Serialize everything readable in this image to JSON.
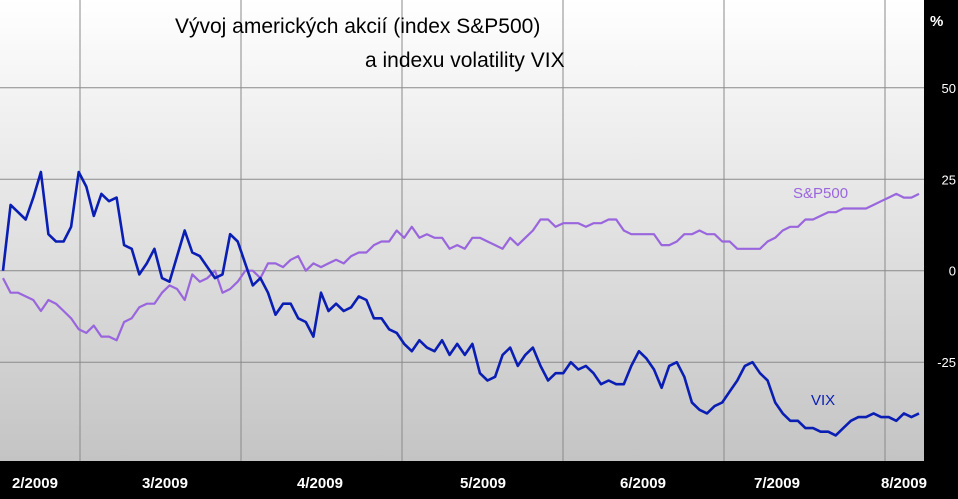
{
  "chart_data": {
    "type": "line",
    "title": [
      "Vývoj amerických akcií (index S&P500)",
      "a indexu volatility VIX"
    ],
    "y_unit": "%",
    "ylim": [
      -52,
      74
    ],
    "y_ticks": [
      50,
      25,
      0,
      -25
    ],
    "y_tick_labels": [
      "50",
      "25",
      "0",
      "-25"
    ],
    "x_tick_labels": [
      "2/2009",
      "3/2009",
      "4/2009",
      "5/2009",
      "6/2009",
      "7/2009",
      "8/2009"
    ],
    "grid": true,
    "colors": {
      "sp500": "#9966dd",
      "vix": "#0a1eb4",
      "plot_bg_top": "#ffffff",
      "plot_bg_bottom": "#c4c4c4",
      "frame": "#000000"
    },
    "series": [
      {
        "key": "sp500",
        "name": "S&P500",
        "values": [
          -2,
          -6,
          -6,
          -7,
          -8,
          -11,
          -8,
          -9,
          -11,
          -13,
          -16,
          -17,
          -15,
          -18,
          -18,
          -19,
          -14,
          -13,
          -10,
          -9,
          -9,
          -6,
          -4,
          -5,
          -8,
          -1,
          -3,
          -2,
          0,
          -6,
          -5,
          -3,
          0,
          0,
          -2,
          2,
          2,
          1,
          3,
          4,
          0,
          2,
          1,
          2,
          3,
          2,
          4,
          5,
          5,
          7,
          8,
          8,
          11,
          9,
          12,
          9,
          10,
          9,
          9,
          6,
          7,
          6,
          9,
          9,
          8,
          7,
          6,
          9,
          7,
          9,
          11,
          14,
          14,
          12,
          13,
          13,
          13,
          12,
          13,
          13,
          14,
          14,
          11,
          10,
          10,
          10,
          10,
          7,
          7,
          8,
          10,
          10,
          11,
          10,
          10,
          8,
          8,
          6,
          6,
          6,
          6,
          8,
          9,
          11,
          12,
          12,
          14,
          14,
          15,
          16,
          16,
          17,
          17,
          17,
          17,
          18,
          19,
          20,
          21,
          20,
          20,
          21
        ]
      },
      {
        "key": "vix",
        "name": "VIX",
        "values": [
          0,
          18,
          16,
          14,
          20,
          27,
          10,
          8,
          8,
          12,
          27,
          23,
          15,
          21,
          19,
          20,
          7,
          6,
          -1,
          2,
          6,
          -2,
          -3,
          4,
          11,
          5,
          4,
          1,
          -2,
          -1,
          10,
          8,
          2,
          -4,
          -2,
          -6,
          -12,
          -9,
          -9,
          -13,
          -14,
          -18,
          -6,
          -11,
          -9,
          -11,
          -10,
          -7,
          -8,
          -13,
          -13,
          -16,
          -17,
          -20,
          -22,
          -19,
          -21,
          -22,
          -19,
          -23,
          -20,
          -23,
          -20,
          -28,
          -30,
          -29,
          -23,
          -21,
          -26,
          -23,
          -21,
          -26,
          -30,
          -28,
          -28,
          -25,
          -27,
          -26,
          -28,
          -31,
          -30,
          -31,
          -31,
          -26,
          -22,
          -24,
          -27,
          -32,
          -26,
          -25,
          -29,
          -36,
          -38,
          -39,
          -37,
          -36,
          -33,
          -30,
          -26,
          -25,
          -28,
          -30,
          -36,
          -39,
          -41,
          -41,
          -43,
          -43,
          -44,
          -44,
          -45,
          -43,
          -41,
          -40,
          -40,
          -39,
          -40,
          -40,
          -41,
          -39,
          -40,
          -39
        ]
      }
    ]
  }
}
